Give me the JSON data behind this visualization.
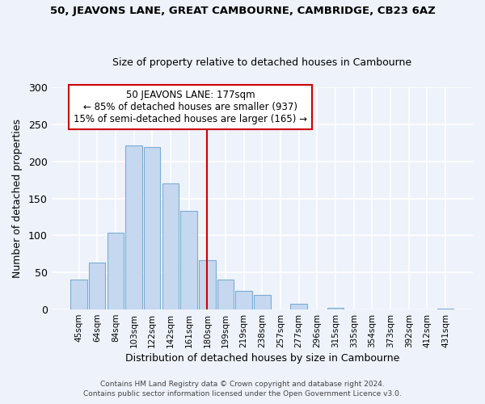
{
  "title": "50, JEAVONS LANE, GREAT CAMBOURNE, CAMBRIDGE, CB23 6AZ",
  "subtitle": "Size of property relative to detached houses in Cambourne",
  "xlabel": "Distribution of detached houses by size in Cambourne",
  "ylabel": "Number of detached properties",
  "bar_color": "#c5d8ef",
  "bar_edge_color": "#7aadd4",
  "categories": [
    "45sqm",
    "64sqm",
    "84sqm",
    "103sqm",
    "122sqm",
    "142sqm",
    "161sqm",
    "180sqm",
    "199sqm",
    "219sqm",
    "238sqm",
    "257sqm",
    "277sqm",
    "296sqm",
    "315sqm",
    "335sqm",
    "354sqm",
    "373sqm",
    "392sqm",
    "412sqm",
    "431sqm"
  ],
  "values": [
    40,
    63,
    104,
    222,
    220,
    170,
    133,
    67,
    40,
    25,
    20,
    0,
    8,
    0,
    2,
    0,
    0,
    0,
    0,
    0,
    1
  ],
  "vline_color": "#cc0000",
  "annotation_title": "50 JEAVONS LANE: 177sqm",
  "annotation_line1": "← 85% of detached houses are smaller (937)",
  "annotation_line2": "15% of semi-detached houses are larger (165) →",
  "annotation_box_color": "#ffffff",
  "annotation_box_edgecolor": "#cc0000",
  "footer1": "Contains HM Land Registry data © Crown copyright and database right 2024.",
  "footer2": "Contains public sector information licensed under the Open Government Licence v3.0.",
  "ylim": [
    0,
    300
  ],
  "background_color": "#eef2fa",
  "grid_color": "#ffffff"
}
